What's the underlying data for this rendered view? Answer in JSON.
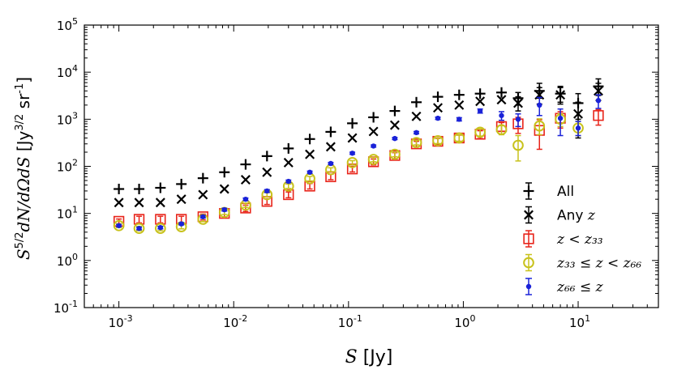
{
  "chart_data": {
    "type": "scatter",
    "title": "",
    "xlabel": "S [Jy]",
    "ylabel": "S^{5/2} dN/dΩdS [Jy^{3/2} sr^{-1}]",
    "xscale": "log",
    "yscale": "log",
    "xlim": [
      0.0005,
      50
    ],
    "ylim": [
      0.1,
      100000
    ],
    "x_ticks": [
      0.001,
      0.01,
      0.1,
      1,
      10
    ],
    "x_tick_labels": [
      {
        "base": "10",
        "exp": "-3"
      },
      {
        "base": "10",
        "exp": "-2"
      },
      {
        "base": "10",
        "exp": "-1"
      },
      {
        "base": "10",
        "exp": "0"
      },
      {
        "base": "10",
        "exp": "1"
      }
    ],
    "y_ticks": [
      0.1,
      1,
      10,
      100,
      1000,
      10000,
      100000
    ],
    "y_tick_labels": [
      {
        "base": "10",
        "exp": "-1"
      },
      {
        "base": "10",
        "exp": "0"
      },
      {
        "base": "10",
        "exp": "1"
      },
      {
        "base": "10",
        "exp": "2"
      },
      {
        "base": "10",
        "exp": "3"
      },
      {
        "base": "10",
        "exp": "4"
      },
      {
        "base": "10",
        "exp": "5"
      }
    ],
    "legend_position": "lower-right",
    "series": [
      {
        "name": "All",
        "legend_text": "All",
        "marker": "plus",
        "color": "#000000",
        "x": [
          0.001,
          0.0015,
          0.0023,
          0.0035,
          0.0054,
          0.0083,
          0.0127,
          0.0195,
          0.03,
          0.046,
          0.07,
          0.108,
          0.165,
          0.253,
          0.39,
          0.6,
          0.92,
          1.4,
          2.15,
          3.0,
          4.6,
          7.0,
          10.0,
          15.0
        ],
        "y": [
          33,
          33,
          35,
          42,
          56,
          75,
          110,
          165,
          240,
          380,
          540,
          820,
          1100,
          1500,
          2300,
          3000,
          3300,
          3500,
          3700,
          2800,
          4000,
          3500,
          2200,
          5000
        ],
        "yerr_lo": [
          0,
          0,
          0,
          0,
          0,
          0,
          0,
          0,
          0,
          0,
          0,
          0,
          0,
          0,
          0,
          0,
          0,
          0,
          0,
          800,
          1200,
          1200,
          1200,
          1800
        ],
        "yerr_hi": [
          0,
          0,
          0,
          0,
          0,
          0,
          0,
          0,
          0,
          0,
          0,
          0,
          0,
          0,
          0,
          0,
          0,
          0,
          0,
          900,
          1800,
          1500,
          1300,
          2200
        ]
      },
      {
        "name": "Any z",
        "legend_text": "Any",
        "legend_math": "z",
        "marker": "x",
        "color": "#000000",
        "x": [
          0.001,
          0.0015,
          0.0023,
          0.0035,
          0.0054,
          0.0083,
          0.0127,
          0.0195,
          0.03,
          0.046,
          0.07,
          0.108,
          0.165,
          0.253,
          0.39,
          0.6,
          0.92,
          1.4,
          2.15,
          3.0,
          4.6,
          7.0,
          10.0,
          15.0
        ],
        "y": [
          17,
          17,
          17,
          20,
          25,
          33,
          52,
          75,
          120,
          180,
          260,
          400,
          550,
          750,
          1150,
          1750,
          2000,
          2400,
          2600,
          2200,
          3300,
          3300,
          1300,
          4000
        ],
        "yerr_lo": [
          0,
          0,
          0,
          0,
          0,
          0,
          0,
          0,
          0,
          0,
          0,
          0,
          0,
          0,
          0,
          0,
          0,
          0,
          0,
          700,
          1200,
          1200,
          900,
          1500
        ],
        "yerr_hi": [
          0,
          0,
          0,
          0,
          0,
          0,
          0,
          0,
          0,
          0,
          0,
          0,
          0,
          0,
          0,
          0,
          0,
          0,
          0,
          800,
          1400,
          1400,
          1000,
          1800
        ]
      },
      {
        "name": "z < z33",
        "legend_math": "z < z₃₃",
        "marker": "square",
        "color": "#e8241a",
        "x": [
          0.001,
          0.0015,
          0.0023,
          0.0035,
          0.0054,
          0.0083,
          0.0127,
          0.0195,
          0.03,
          0.046,
          0.07,
          0.108,
          0.165,
          0.253,
          0.39,
          0.6,
          0.92,
          1.4,
          2.15,
          3.0,
          4.6,
          7.0,
          10.0,
          15.0
        ],
        "y": [
          6.8,
          7.5,
          7.5,
          7.5,
          8.5,
          10,
          13,
          18,
          25,
          38,
          60,
          88,
          125,
          170,
          300,
          340,
          400,
          480,
          700,
          800,
          580,
          1050,
          null,
          1200
        ],
        "yerr_lo": [
          0.8,
          1.2,
          1.2,
          1.2,
          1.2,
          1.5,
          2,
          2.5,
          3.5,
          5,
          8,
          12,
          18,
          25,
          40,
          50,
          60,
          90,
          150,
          300,
          350,
          400,
          0,
          450
        ],
        "yerr_hi": [
          0.8,
          1.2,
          1.2,
          1.2,
          1.2,
          1.5,
          2,
          2.5,
          3.5,
          5,
          8,
          12,
          18,
          25,
          40,
          50,
          60,
          90,
          150,
          300,
          400,
          400,
          0,
          400
        ]
      },
      {
        "name": "z33 <= z < z66",
        "legend_math": "z₃₃ ≤ z < z₆₆",
        "marker": "circle-open",
        "color": "#c8c21c",
        "x": [
          0.001,
          0.0015,
          0.0023,
          0.0035,
          0.0054,
          0.0083,
          0.0127,
          0.0195,
          0.03,
          0.046,
          0.07,
          0.108,
          0.165,
          0.253,
          0.39,
          0.6,
          0.92,
          1.4,
          2.15,
          3.0,
          4.6,
          7.0,
          10.0
        ],
        "y": [
          5.5,
          4.8,
          4.8,
          5.2,
          7.5,
          10.5,
          15,
          25,
          38,
          55,
          85,
          120,
          140,
          180,
          320,
          350,
          400,
          530,
          600,
          280,
          720,
          1000,
          650
        ],
        "yerr_lo": [
          0.5,
          0.5,
          0.5,
          0.5,
          0.8,
          1,
          1.5,
          2.5,
          4,
          6,
          8,
          12,
          15,
          20,
          35,
          45,
          60,
          90,
          130,
          150,
          250,
          300,
          200
        ],
        "yerr_hi": [
          0.5,
          0.5,
          0.5,
          0.5,
          0.8,
          1,
          1.5,
          2.5,
          4,
          6,
          8,
          12,
          15,
          20,
          35,
          45,
          60,
          90,
          130,
          170,
          300,
          300,
          250
        ]
      },
      {
        "name": "z66 <= z",
        "legend_math": "z₆₆ ≤ z",
        "marker": "circle-filled",
        "color": "#1a22d8",
        "x": [
          0.001,
          0.0015,
          0.0023,
          0.0035,
          0.0054,
          0.0083,
          0.0127,
          0.0195,
          0.03,
          0.046,
          0.07,
          0.108,
          0.165,
          0.253,
          0.39,
          0.6,
          0.92,
          1.4,
          2.15,
          3.0,
          4.6,
          7.0,
          10.0,
          15.0
        ],
        "y": [
          5.5,
          4.8,
          5,
          6,
          8.5,
          12,
          20,
          30,
          48,
          75,
          115,
          190,
          270,
          390,
          520,
          1050,
          1000,
          1500,
          1200,
          1000,
          2000,
          1050,
          650,
          2500
        ],
        "yerr_lo": [
          0.3,
          0.3,
          0.3,
          0.3,
          0.5,
          0.8,
          1.2,
          2,
          3,
          4,
          6,
          10,
          14,
          20,
          30,
          60,
          80,
          150,
          250,
          300,
          800,
          600,
          200,
          800
        ],
        "yerr_hi": [
          0.3,
          0.3,
          0.3,
          0.3,
          0.5,
          0.8,
          1.2,
          2,
          3,
          4,
          6,
          10,
          14,
          20,
          30,
          60,
          80,
          150,
          250,
          300,
          900,
          600,
          250,
          800
        ]
      }
    ]
  }
}
